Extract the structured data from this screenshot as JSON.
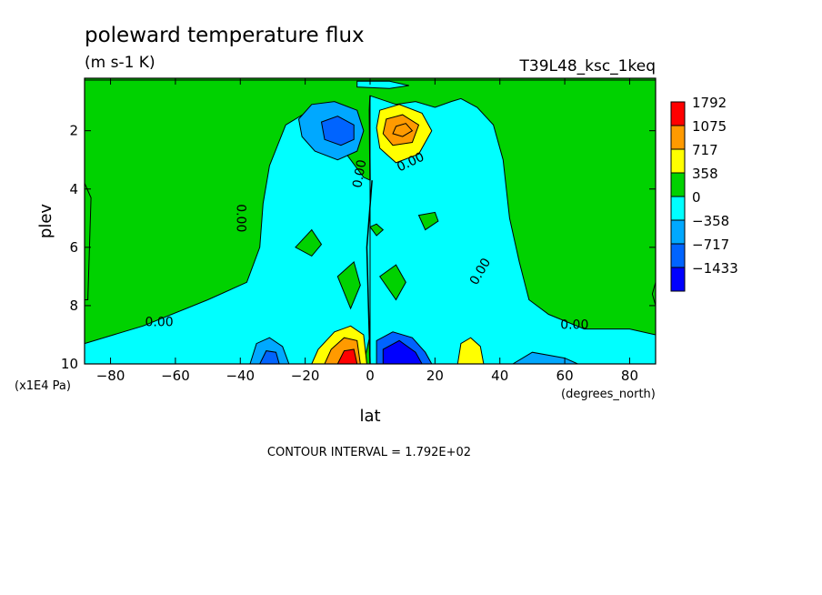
{
  "chart_data": {
    "type": "contour",
    "title": "poleward temperature flux",
    "units": "(m s-1 K)",
    "run_label": "T39L48_ksc_1keq",
    "xlabel": "lat",
    "x_units": "(degrees_north)",
    "ylabel": "plev",
    "y_units": "(x1E4 Pa)",
    "xlim": [
      -88,
      88
    ],
    "ylim": [
      10,
      0.2
    ],
    "x_ticks": [
      -80,
      -60,
      -40,
      -20,
      0,
      20,
      40,
      60,
      80
    ],
    "y_ticks": [
      2,
      4,
      6,
      8,
      10
    ],
    "contour_interval_text": "CONTOUR INTERVAL = 1.792E+02",
    "colorbar": {
      "levels": [
        1792,
        1075,
        717,
        358,
        0,
        -358,
        -717,
        -1433
      ],
      "colors": [
        "#ff0000",
        "#ff9a00",
        "#ffff00",
        "#00d200",
        "#00ffff",
        "#00a8ff",
        "#0064ff",
        "#0000ff"
      ]
    },
    "background_color": "#00d200",
    "regions": [
      {
        "name": "sh-cyan-band",
        "fill": "#00ffff",
        "points": [
          [
            -88,
            9.3
          ],
          [
            -70,
            8.7
          ],
          [
            -50,
            7.8
          ],
          [
            -38,
            7.2
          ],
          [
            -34,
            6
          ],
          [
            -33,
            4.5
          ],
          [
            -31,
            3.2
          ],
          [
            -26,
            1.8
          ],
          [
            -20,
            1.4
          ],
          [
            -14,
            1.35
          ],
          [
            -8,
            1.3
          ],
          [
            -8,
            2.7
          ],
          [
            -2,
            3.6
          ],
          [
            0,
            3.7
          ],
          [
            0,
            6
          ],
          [
            0,
            9
          ],
          [
            -2,
            10
          ],
          [
            -88,
            10
          ]
        ]
      },
      {
        "name": "nh-cyan-region",
        "fill": "#00ffff",
        "points": [
          [
            0,
            0.8
          ],
          [
            8,
            1.1
          ],
          [
            14,
            1.0
          ],
          [
            20,
            1.2
          ],
          [
            25,
            1.0
          ],
          [
            28,
            0.9
          ],
          [
            33,
            1.2
          ],
          [
            38,
            1.8
          ],
          [
            41,
            3
          ],
          [
            43,
            5
          ],
          [
            46,
            6.5
          ],
          [
            49,
            7.8
          ],
          [
            55,
            8.3
          ],
          [
            66,
            8.8
          ],
          [
            80,
            8.8
          ],
          [
            88,
            9
          ],
          [
            88,
            10
          ],
          [
            0,
            10
          ]
        ]
      },
      {
        "name": "top-cyan-cell",
        "fill": "#00ffff",
        "points": [
          [
            -4,
            0.3
          ],
          [
            6,
            0.3
          ],
          [
            12,
            0.45
          ],
          [
            6,
            0.55
          ],
          [
            -4,
            0.5
          ]
        ]
      },
      {
        "name": "mid-green-cell-1",
        "fill": "#00d200",
        "points": [
          [
            -23,
            6
          ],
          [
            -18,
            5.4
          ],
          [
            -15,
            5.9
          ],
          [
            -18,
            6.3
          ]
        ]
      },
      {
        "name": "mid-green-cell-2",
        "fill": "#00d200",
        "points": [
          [
            -10,
            7
          ],
          [
            -5,
            6.5
          ],
          [
            -3,
            7.3
          ],
          [
            -6,
            8.1
          ]
        ]
      },
      {
        "name": "mid-green-cell-3",
        "fill": "#00d200",
        "points": [
          [
            3,
            7
          ],
          [
            8,
            6.6
          ],
          [
            11,
            7.2
          ],
          [
            8,
            7.8
          ]
        ]
      },
      {
        "name": "mid-green-cell-4",
        "fill": "#00d200",
        "points": [
          [
            15,
            4.9
          ],
          [
            20,
            4.8
          ],
          [
            21,
            5.1
          ],
          [
            17,
            5.4
          ]
        ]
      },
      {
        "name": "mid-green-cell-5",
        "fill": "#00d200",
        "points": [
          [
            0,
            5.3
          ],
          [
            2,
            5.2
          ],
          [
            4,
            5.4
          ],
          [
            2,
            5.6
          ]
        ]
      },
      {
        "name": "green-left-edge",
        "fill": "#00d200",
        "points": [
          [
            -88,
            3.8
          ],
          [
            -86,
            4.3
          ],
          [
            -87,
            7.8
          ],
          [
            -88,
            7.8
          ]
        ]
      },
      {
        "name": "green-right-edge",
        "fill": "#00d200",
        "points": [
          [
            88,
            7.2
          ],
          [
            87,
            7.6
          ],
          [
            88,
            8
          ]
        ]
      },
      {
        "name": "upper-blue-lobe-outer",
        "fill": "#00a8ff",
        "points": [
          [
            -22,
            1.6
          ],
          [
            -18,
            1.1
          ],
          [
            -11,
            1.0
          ],
          [
            -4,
            1.3
          ],
          [
            -2,
            2
          ],
          [
            -4,
            2.7
          ],
          [
            -10,
            3.0
          ],
          [
            -17,
            2.7
          ],
          [
            -21,
            2.2
          ]
        ]
      },
      {
        "name": "upper-blue-lobe-inner",
        "fill": "#0064ff",
        "points": [
          [
            -15,
            1.7
          ],
          [
            -10,
            1.5
          ],
          [
            -5,
            1.8
          ],
          [
            -5,
            2.3
          ],
          [
            -9,
            2.5
          ],
          [
            -14,
            2.3
          ]
        ]
      },
      {
        "name": "upper-red-lobe-outer",
        "fill": "#ffff00",
        "points": [
          [
            3,
            1.3
          ],
          [
            9,
            1.1
          ],
          [
            16,
            1.4
          ],
          [
            19,
            2
          ],
          [
            15,
            2.8
          ],
          [
            8,
            3.1
          ],
          [
            3,
            2.6
          ],
          [
            2,
            1.9
          ]
        ]
      },
      {
        "name": "upper-red-lobe-mid",
        "fill": "#ff9a00",
        "points": [
          [
            5,
            1.6
          ],
          [
            10,
            1.45
          ],
          [
            15,
            1.8
          ],
          [
            13,
            2.4
          ],
          [
            7,
            2.5
          ],
          [
            4,
            2.1
          ]
        ]
      },
      {
        "name": "upper-red-lobe-inner",
        "fill": "#ff9a00",
        "points": [
          [
            8,
            1.85
          ],
          [
            11,
            1.75
          ],
          [
            13,
            2.0
          ],
          [
            10,
            2.2
          ],
          [
            7,
            2.1
          ]
        ]
      },
      {
        "name": "lower-blue-lobe-outer",
        "fill": "#0064ff",
        "points": [
          [
            2,
            9.2
          ],
          [
            7,
            8.9
          ],
          [
            13,
            9.1
          ],
          [
            17,
            9.6
          ],
          [
            19,
            10
          ],
          [
            2,
            10
          ]
        ]
      },
      {
        "name": "lower-blue-lobe-inner",
        "fill": "#0000ff",
        "points": [
          [
            4,
            9.5
          ],
          [
            9,
            9.2
          ],
          [
            14,
            9.6
          ],
          [
            16,
            10
          ],
          [
            4,
            10
          ]
        ]
      },
      {
        "name": "lower-red-lobe-outer",
        "fill": "#ffff00",
        "points": [
          [
            -18,
            10
          ],
          [
            -16,
            9.5
          ],
          [
            -11,
            8.9
          ],
          [
            -6,
            8.7
          ],
          [
            -2,
            9.0
          ],
          [
            -1,
            10
          ]
        ]
      },
      {
        "name": "lower-red-lobe-mid",
        "fill": "#ff9a00",
        "points": [
          [
            -14,
            10
          ],
          [
            -12,
            9.5
          ],
          [
            -8,
            9.1
          ],
          [
            -4,
            9.2
          ],
          [
            -3,
            10
          ]
        ]
      },
      {
        "name": "lower-red-lobe-inner",
        "fill": "#ff0000",
        "points": [
          [
            -10,
            10
          ],
          [
            -8,
            9.55
          ],
          [
            -5,
            9.5
          ],
          [
            -4,
            10
          ]
        ]
      },
      {
        "name": "sh-blue-lobe",
        "fill": "#00a8ff",
        "points": [
          [
            -37,
            10
          ],
          [
            -35,
            9.3
          ],
          [
            -31,
            9.1
          ],
          [
            -27,
            9.4
          ],
          [
            -25,
            10
          ]
        ]
      },
      {
        "name": "sh-blue-lobe-inner",
        "fill": "#0064ff",
        "points": [
          [
            -34,
            10
          ],
          [
            -32,
            9.55
          ],
          [
            -29,
            9.6
          ],
          [
            -28,
            10
          ]
        ]
      },
      {
        "name": "nh-yellow-lobe",
        "fill": "#ffff00",
        "points": [
          [
            27,
            10
          ],
          [
            28,
            9.3
          ],
          [
            31,
            9.1
          ],
          [
            34,
            9.4
          ],
          [
            35,
            10
          ]
        ]
      },
      {
        "name": "nh-deep-blue-lobe",
        "fill": "#00a8ff",
        "points": [
          [
            44,
            10
          ],
          [
            50,
            9.6
          ],
          [
            60,
            9.8
          ],
          [
            64,
            10
          ]
        ]
      }
    ],
    "contour_labels": [
      {
        "text": "0.00",
        "lat": -2,
        "plev": 3.5,
        "rotate": -80
      },
      {
        "text": "0.00",
        "lat": 13,
        "plev": 3.2,
        "rotate": -25
      },
      {
        "text": "0.00",
        "lat": -41,
        "plev": 5.0,
        "rotate": 90
      },
      {
        "text": "0.00",
        "lat": 35,
        "plev": 6.9,
        "rotate": -60
      },
      {
        "text": "0.00",
        "lat": -65,
        "plev": 8.7,
        "rotate": 0
      },
      {
        "text": "0.00",
        "lat": 63,
        "plev": 8.8,
        "rotate": 0
      }
    ]
  }
}
